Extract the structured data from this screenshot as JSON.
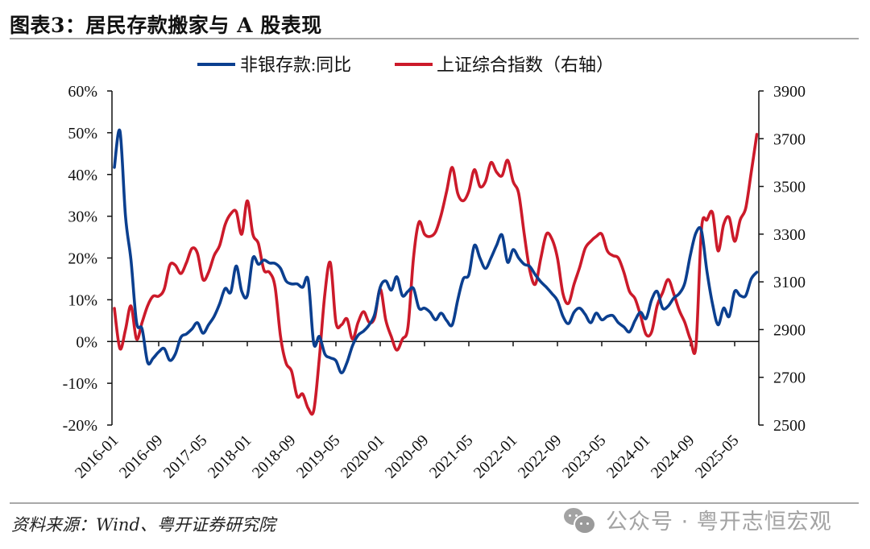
{
  "title": "图表3：居民存款搬家与 A 股表现",
  "source": "资料来源：Wind、粤开证券研究院",
  "watermark": {
    "icon": "wechat-icon",
    "text": "公众号 · 粤开志恒宏观"
  },
  "colors": {
    "deposit": "#0b3f8f",
    "index": "#cc1a2a",
    "axis": "#111111",
    "rule": "#a8a8a8"
  },
  "chart_data": {
    "type": "line",
    "title": "图表3：居民存款搬家与 A 股表现",
    "legend_position": "top",
    "grid": false,
    "x_start": "2016-01",
    "x_end": "2025-09",
    "x_tick_labels": [
      "2016-01",
      "2016-09",
      "2017-05",
      "2018-01",
      "2018-09",
      "2019-05",
      "2020-01",
      "2020-09",
      "2021-05",
      "2022-01",
      "2022-09",
      "2023-05",
      "2024-01",
      "2024-09",
      "2025-05"
    ],
    "y_left": {
      "range": [
        -20,
        60
      ],
      "ticks": [
        60,
        50,
        40,
        30,
        20,
        10,
        0,
        -10,
        -20
      ],
      "tick_labels": [
        "60%",
        "50%",
        "40%",
        "30%",
        "20%",
        "10%",
        "0%",
        "-10%",
        "-20%"
      ],
      "unit": "%"
    },
    "y_right": {
      "range": [
        2500,
        3900
      ],
      "ticks": [
        3900,
        3700,
        3500,
        3300,
        3100,
        2900,
        2700,
        2500
      ],
      "tick_labels": [
        "3900",
        "3700",
        "3500",
        "3300",
        "3100",
        "2900",
        "2700",
        "2500"
      ]
    },
    "series": [
      {
        "name": "非银存款:同比",
        "axis": "left",
        "values": [
          41.7,
          50.4,
          30,
          19.5,
          4.6,
          3,
          -5,
          -4,
          -2.5,
          -1.7,
          -4.5,
          -3,
          1,
          1.8,
          3,
          4.5,
          2,
          4,
          6,
          9,
          12.7,
          11.8,
          18.1,
          12,
          11,
          20,
          18.5,
          19.5,
          18.8,
          18.7,
          17.5,
          14.5,
          13.8,
          13.8,
          13,
          14.7,
          -0.5,
          1.2,
          -3,
          -3.9,
          -4.6,
          -7.5,
          -5,
          -1,
          1.5,
          2.5,
          4,
          6.5,
          13,
          14.5,
          12.3,
          15.5,
          11,
          12,
          12.7,
          8,
          8,
          7,
          5.2,
          6.8,
          5,
          4,
          10,
          15,
          16,
          23,
          20,
          17.5,
          20,
          23,
          25.5,
          19,
          22,
          20,
          18.5,
          18,
          16,
          14.3,
          13,
          11.5,
          9.8,
          6,
          4.3,
          7,
          8,
          6.5,
          4.5,
          6.8,
          5.2,
          6,
          6.2,
          4.5,
          3.5,
          2.3,
          5,
          7,
          5.5,
          10,
          12,
          8,
          8.5,
          10.4,
          11.5,
          14,
          20.7,
          26,
          26.5,
          16.8,
          9,
          4,
          8,
          6,
          12,
          11,
          11,
          15,
          16.6
        ]
      },
      {
        "name": "上证综合指数（右轴）",
        "axis": "right",
        "values": [
          2989,
          2820,
          2900,
          2999,
          2860,
          2930,
          3000,
          3040,
          3040,
          3070,
          3170,
          3170,
          3135,
          3180,
          3240,
          3220,
          3110,
          3140,
          3210,
          3252,
          3340,
          3385,
          3394,
          3300,
          3440,
          3300,
          3260,
          3150,
          3140,
          3080,
          2870,
          2760,
          2725,
          2620,
          2630,
          2570,
          2561,
          2780,
          3050,
          3180,
          2930,
          2920,
          2945,
          2860,
          2930,
          2975,
          2930,
          2950,
          3070,
          2940,
          2870,
          2814,
          2860,
          2910,
          3200,
          3350,
          3300,
          3290,
          3310,
          3380,
          3480,
          3580,
          3470,
          3440,
          3480,
          3570,
          3500,
          3520,
          3600,
          3560,
          3545,
          3610,
          3520,
          3470,
          3300,
          3150,
          3090,
          3200,
          3300,
          3280,
          3200,
          3050,
          3010,
          3090,
          3160,
          3240,
          3270,
          3290,
          3300,
          3230,
          3210,
          3200,
          3140,
          3060,
          3030,
          2960,
          2880,
          2890,
          3000,
          3055,
          3110,
          3050,
          2980,
          2930,
          2860,
          2830,
          3320,
          3360,
          3390,
          3230,
          3340,
          3370,
          3270,
          3360,
          3410,
          3560,
          3718
        ]
      }
    ]
  }
}
